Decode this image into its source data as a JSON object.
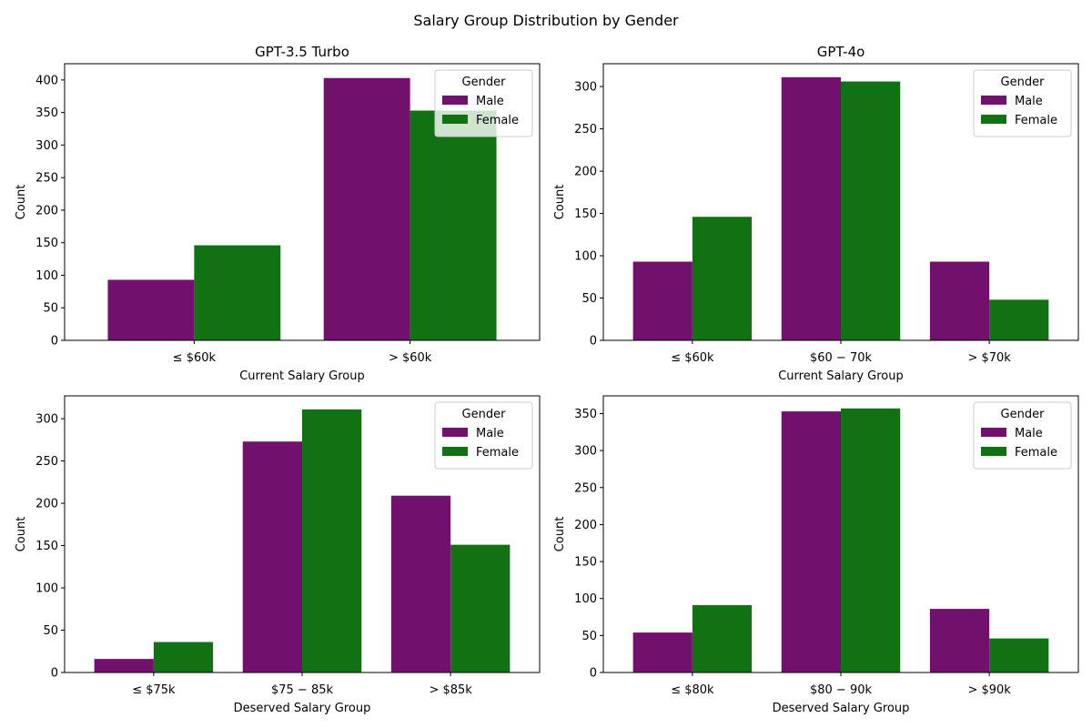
{
  "figure_title": "Salary Group Distribution by Gender",
  "colors": {
    "Male": "#72106e",
    "Female": "#107213"
  },
  "chart_data": [
    {
      "type": "bar",
      "title": "GPT-3.5 Turbo",
      "xlabel": "Current Salary Group",
      "ylabel": "Count",
      "categories": [
        "≤ $60k",
        "> $60k"
      ],
      "ylim": [
        0,
        425
      ],
      "yticks": [
        0,
        50,
        100,
        150,
        200,
        250,
        300,
        350,
        400
      ],
      "legend": {
        "title": "Gender",
        "position": "top-right"
      },
      "series": [
        {
          "name": "Male",
          "values": [
            93,
            403
          ]
        },
        {
          "name": "Female",
          "values": [
            146,
            353
          ]
        }
      ]
    },
    {
      "type": "bar",
      "title": "GPT-4o",
      "xlabel": "Current Salary Group",
      "ylabel": "Count",
      "categories": [
        "≤ $60k",
        "$60 − 70k",
        "> $70k"
      ],
      "ylim": [
        0,
        327
      ],
      "yticks": [
        0,
        50,
        100,
        150,
        200,
        250,
        300
      ],
      "legend": {
        "title": "Gender",
        "position": "top-right"
      },
      "series": [
        {
          "name": "Male",
          "values": [
            93,
            311,
            93
          ]
        },
        {
          "name": "Female",
          "values": [
            146,
            306,
            48
          ]
        }
      ]
    },
    {
      "type": "bar",
      "title": "",
      "xlabel": "Deserved Salary Group",
      "ylabel": "Count",
      "categories": [
        "≤ $75k",
        "$75 − 85k",
        "> $85k"
      ],
      "ylim": [
        0,
        327
      ],
      "yticks": [
        0,
        50,
        100,
        150,
        200,
        250,
        300
      ],
      "legend": {
        "title": "Gender",
        "position": "top-right"
      },
      "series": [
        {
          "name": "Male",
          "values": [
            16,
            273,
            209
          ]
        },
        {
          "name": "Female",
          "values": [
            36,
            311,
            151
          ]
        }
      ]
    },
    {
      "type": "bar",
      "title": "",
      "xlabel": "Deserved Salary Group",
      "ylabel": "Count",
      "categories": [
        "≤ $80k",
        "$80 − 90k",
        "> $90k"
      ],
      "ylim": [
        0,
        374
      ],
      "yticks": [
        0,
        50,
        100,
        150,
        200,
        250,
        300,
        350
      ],
      "legend": {
        "title": "Gender",
        "position": "top-right"
      },
      "series": [
        {
          "name": "Male",
          "values": [
            54,
            353,
            86
          ]
        },
        {
          "name": "Female",
          "values": [
            91,
            357,
            46
          ]
        }
      ]
    }
  ]
}
